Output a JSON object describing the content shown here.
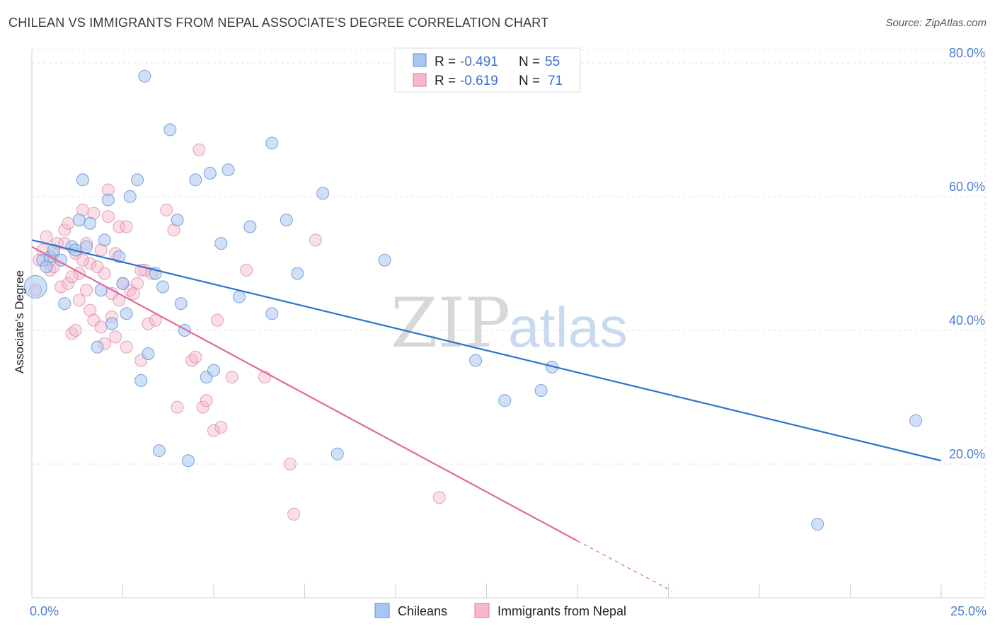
{
  "title": "CHILEAN VS IMMIGRANTS FROM NEPAL ASSOCIATE'S DEGREE CORRELATION CHART",
  "source": "Source: ZipAtlas.com",
  "watermark": {
    "zip": "ZIP",
    "atlas": "atlas"
  },
  "colors": {
    "blue_fill": "#a9c6f0",
    "blue_stroke": "#5b8ed6",
    "blue_line": "#2f72d0",
    "pink_fill": "#f5b8cc",
    "pink_stroke": "#e07a9c",
    "pink_line": "#e06a93",
    "grid": "#e3e3e3",
    "tick_text": "#4a7fd0"
  },
  "legend_top": {
    "rows": [
      {
        "r_label": "R =",
        "r_value": "-0.491",
        "n_label": "N =",
        "n_value": "55",
        "color": "blue"
      },
      {
        "r_label": "R =",
        "r_value": "-0.619",
        "n_label": "N =",
        "n_value": "71",
        "color": "pink"
      }
    ]
  },
  "legend_bottom": [
    {
      "label": "Chileans",
      "color": "blue"
    },
    {
      "label": "Immigrants from Nepal",
      "color": "pink"
    }
  ],
  "chart_data": {
    "type": "scatter",
    "title": "CHILEAN VS IMMIGRANTS FROM NEPAL ASSOCIATE'S DEGREE CORRELATION CHART",
    "xlabel": "",
    "ylabel": "Associate's Degree",
    "xlim": [
      0,
      25
    ],
    "ylim": [
      0,
      82
    ],
    "x_tick_labels": [
      {
        "value": 0,
        "label": "0.0%"
      },
      {
        "value": 25,
        "label": "25.0%"
      }
    ],
    "y_tick_labels": [
      {
        "value": 20,
        "label": "20.0%"
      },
      {
        "value": 40,
        "label": "40.0%"
      },
      {
        "value": 60,
        "label": "60.0%"
      },
      {
        "value": 80,
        "label": "80.0%"
      }
    ],
    "grid": true,
    "legend_placement": "top-center",
    "series": [
      {
        "name": "Chileans",
        "color": "blue",
        "r": -0.491,
        "n": 55,
        "trend": {
          "x0": 0,
          "y0": 53.5,
          "x1": 25,
          "y1": 20.5
        },
        "points": [
          [
            0.1,
            46.5
          ],
          [
            0.3,
            50.5
          ],
          [
            0.5,
            51.0
          ],
          [
            0.6,
            52.0
          ],
          [
            0.8,
            50.5
          ],
          [
            0.9,
            44.0
          ],
          [
            1.1,
            52.5
          ],
          [
            1.2,
            52.0
          ],
          [
            1.3,
            56.5
          ],
          [
            1.4,
            62.5
          ],
          [
            1.5,
            52.5
          ],
          [
            1.6,
            56.0
          ],
          [
            1.8,
            37.5
          ],
          [
            1.9,
            46.0
          ],
          [
            2.0,
            53.5
          ],
          [
            2.1,
            59.5
          ],
          [
            2.2,
            41.0
          ],
          [
            2.4,
            51.0
          ],
          [
            2.5,
            47.0
          ],
          [
            2.6,
            42.5
          ],
          [
            2.7,
            60.0
          ],
          [
            2.9,
            62.5
          ],
          [
            3.0,
            32.5
          ],
          [
            3.1,
            78.0
          ],
          [
            3.2,
            36.5
          ],
          [
            3.4,
            48.5
          ],
          [
            3.5,
            22.0
          ],
          [
            3.6,
            46.5
          ],
          [
            3.8,
            70.0
          ],
          [
            4.0,
            56.5
          ],
          [
            4.1,
            44.0
          ],
          [
            4.2,
            40.0
          ],
          [
            4.3,
            20.5
          ],
          [
            4.5,
            62.5
          ],
          [
            4.8,
            33.0
          ],
          [
            4.9,
            63.5
          ],
          [
            5.0,
            34.0
          ],
          [
            5.2,
            53.0
          ],
          [
            5.4,
            64.0
          ],
          [
            5.7,
            45.0
          ],
          [
            6.0,
            55.5
          ],
          [
            6.6,
            42.5
          ],
          [
            6.6,
            68.0
          ],
          [
            7.0,
            56.5
          ],
          [
            7.3,
            48.5
          ],
          [
            8.0,
            60.5
          ],
          [
            8.4,
            21.5
          ],
          [
            9.7,
            50.5
          ],
          [
            12.2,
            35.5
          ],
          [
            13.0,
            29.5
          ],
          [
            14.0,
            31.0
          ],
          [
            14.3,
            34.5
          ],
          [
            21.6,
            11.0
          ],
          [
            24.3,
            26.5
          ],
          [
            0.4,
            49.5
          ]
        ]
      },
      {
        "name": "Immigrants from Nepal",
        "color": "pink",
        "r": -0.619,
        "n": 71,
        "trend": {
          "x0": 0,
          "y0": 52.5,
          "x1": 15,
          "y1": 8.5
        },
        "trend_dashed": {
          "x0": 15,
          "y0": 8.5,
          "x1": 17.6,
          "y1": 1.0
        },
        "points": [
          [
            0.1,
            46.0
          ],
          [
            0.2,
            50.5
          ],
          [
            0.3,
            52.0
          ],
          [
            0.4,
            54.0
          ],
          [
            0.5,
            49.0
          ],
          [
            0.6,
            51.5
          ],
          [
            0.7,
            53.0
          ],
          [
            0.8,
            46.5
          ],
          [
            0.9,
            55.0
          ],
          [
            1.0,
            56.0
          ],
          [
            1.0,
            47.0
          ],
          [
            1.1,
            39.5
          ],
          [
            1.2,
            51.5
          ],
          [
            1.2,
            40.0
          ],
          [
            1.3,
            44.5
          ],
          [
            1.3,
            48.5
          ],
          [
            1.4,
            58.0
          ],
          [
            1.5,
            46.0
          ],
          [
            1.5,
            53.0
          ],
          [
            1.6,
            43.0
          ],
          [
            1.6,
            50.0
          ],
          [
            1.7,
            41.5
          ],
          [
            1.7,
            57.5
          ],
          [
            1.8,
            49.5
          ],
          [
            1.9,
            52.0
          ],
          [
            1.9,
            40.5
          ],
          [
            2.0,
            38.0
          ],
          [
            2.0,
            48.5
          ],
          [
            2.1,
            57.0
          ],
          [
            2.1,
            61.0
          ],
          [
            2.2,
            45.5
          ],
          [
            2.3,
            51.5
          ],
          [
            2.3,
            39.0
          ],
          [
            2.4,
            55.5
          ],
          [
            2.4,
            44.5
          ],
          [
            2.5,
            47.0
          ],
          [
            2.6,
            37.5
          ],
          [
            2.6,
            55.5
          ],
          [
            2.7,
            46.0
          ],
          [
            2.8,
            45.5
          ],
          [
            2.9,
            47.0
          ],
          [
            3.0,
            35.5
          ],
          [
            3.1,
            49.0
          ],
          [
            3.2,
            41.0
          ],
          [
            3.3,
            48.5
          ],
          [
            3.4,
            41.5
          ],
          [
            3.7,
            58.0
          ],
          [
            3.9,
            55.0
          ],
          [
            4.0,
            28.5
          ],
          [
            4.4,
            35.5
          ],
          [
            4.6,
            67.0
          ],
          [
            4.7,
            28.5
          ],
          [
            4.8,
            29.5
          ],
          [
            5.0,
            25.0
          ],
          [
            5.1,
            41.5
          ],
          [
            5.2,
            25.5
          ],
          [
            5.5,
            33.0
          ],
          [
            5.9,
            49.0
          ],
          [
            6.4,
            33.0
          ],
          [
            7.1,
            20.0
          ],
          [
            7.2,
            12.5
          ],
          [
            7.8,
            53.5
          ],
          [
            11.2,
            15.0
          ],
          [
            0.6,
            49.5
          ],
          [
            0.9,
            53.0
          ],
          [
            1.4,
            50.5
          ],
          [
            2.2,
            42.0
          ],
          [
            3.0,
            49.0
          ],
          [
            4.5,
            36.0
          ],
          [
            1.1,
            48.0
          ],
          [
            0.5,
            50.5
          ]
        ]
      }
    ]
  }
}
